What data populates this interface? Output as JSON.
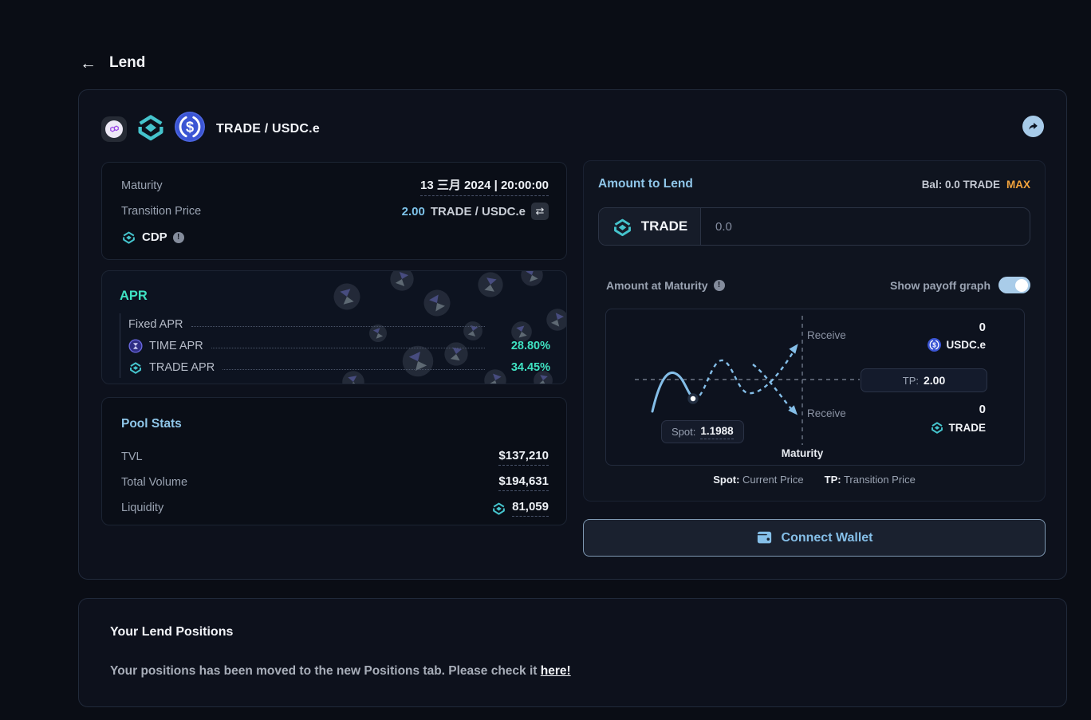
{
  "page": {
    "back_label": "Lend"
  },
  "pool_header": {
    "title": "TRADE / USDC.e"
  },
  "details": {
    "maturity_label": "Maturity",
    "maturity_value": "13 三月 2024 | 20:00:00",
    "transition_price_label": "Transition Price",
    "transition_price_value": "2.00",
    "transition_price_pair": "TRADE / USDC.e",
    "swap_glyph": "⇄",
    "cdp_label": "CDP"
  },
  "apr": {
    "title": "APR",
    "rows": [
      {
        "label": "Fixed APR",
        "value": ""
      },
      {
        "label": "TIME APR",
        "value": "28.80%"
      },
      {
        "label": "TRADE APR",
        "value": "34.45%"
      }
    ]
  },
  "pool_stats": {
    "title": "Pool Stats",
    "rows": [
      {
        "label": "TVL",
        "value": "$137,210"
      },
      {
        "label": "Total Volume",
        "value": "$194,631"
      },
      {
        "label": "Liquidity",
        "value": "81,059"
      }
    ]
  },
  "lend": {
    "title": "Amount to Lend",
    "balance_label": "Bal:",
    "balance_value": "0.0 TRADE",
    "max_label": "MAX",
    "token": "TRADE",
    "amount_placeholder": "0.0",
    "amount_at_maturity_label": "Amount at Maturity",
    "show_payoff_label": "Show payoff graph",
    "toggle_on": true
  },
  "graph": {
    "receive_upper_label": "Receive",
    "receive_upper_amount": "0",
    "receive_upper_token": "USDC.e",
    "receive_lower_label": "Receive",
    "receive_lower_amount": "0",
    "receive_lower_token": "TRADE",
    "tp_label": "TP:",
    "tp_value": "2.00",
    "spot_label": "Spot:",
    "spot_value": "1.1988",
    "x_axis_label": "Maturity",
    "legend": [
      {
        "term": "Spot:",
        "desc": "Current Price"
      },
      {
        "term": "TP:",
        "desc": "Transition Price"
      }
    ]
  },
  "wallet": {
    "connect_label": "Connect Wallet"
  },
  "positions": {
    "title": "Your Lend Positions",
    "message": "Your positions has been moved to the new Positions tab. Please check it ",
    "link_label": "here!"
  },
  "colors": {
    "accent_teal": "#3fe2c2",
    "trade_teal": "#45c4cd",
    "heading_blue": "#8fc6e9",
    "curve_blue": "#84bee8",
    "max_orange": "#f2a33c",
    "usdc_blue": "#2775ca",
    "polygon_purple": "#9945e8",
    "background": "#0a0d15"
  }
}
